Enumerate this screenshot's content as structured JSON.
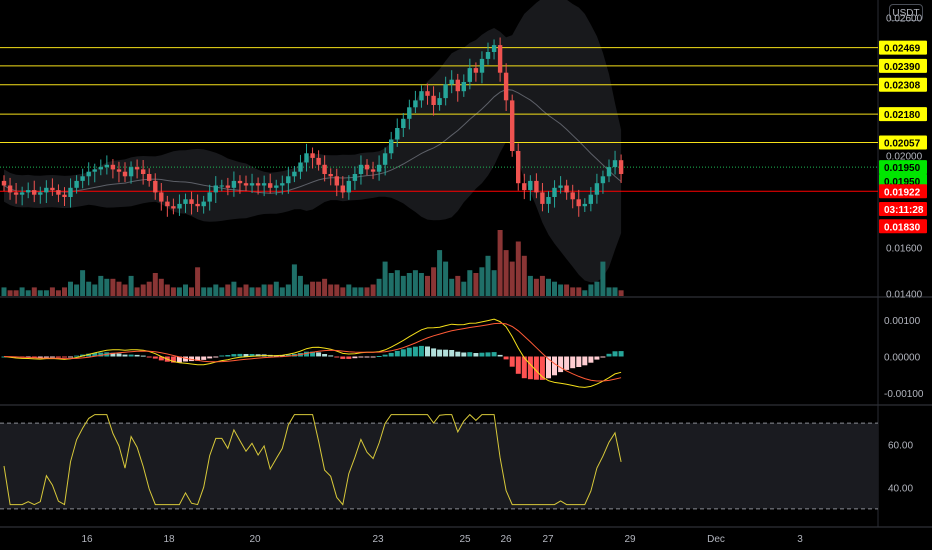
{
  "currency": "USDT",
  "colors": {
    "bg": "#000000",
    "up": "#26a69a",
    "down": "#ef5350",
    "vol_up": "#1f6f68",
    "vol_down": "#8a3535",
    "level_line": "#f5e01a",
    "badge_yellow": "#ffff00",
    "badge_green": "#00e600",
    "badge_red": "#ff0000",
    "hist_up_strong": "#26a69a",
    "hist_up_weak": "#b2dfdb",
    "hist_down_strong": "#ff5252",
    "hist_down_weak": "#ffcdd2",
    "macd_line": "#f5e01a",
    "signal_line": "#ff5a36",
    "rsi_line": "#d8c93a",
    "axis_text": "#b2b5be"
  },
  "chart_data": [
    {
      "type": "candlestick",
      "name": "price",
      "x_tick_labels": [
        "16",
        "18",
        "20",
        "23",
        "25",
        "26",
        "27",
        "29",
        "Dec",
        "3"
      ],
      "y_ticks": [
        "0.02600",
        "0.02000",
        "0.01600",
        "0.01400"
      ],
      "ylim": [
        0.0139,
        0.0265
      ],
      "price_levels": [
        {
          "label": "0.02469",
          "value": 0.02469,
          "style": "yellow"
        },
        {
          "label": "0.02390",
          "value": 0.0239,
          "style": "yellow"
        },
        {
          "label": "0.02308",
          "value": 0.02308,
          "style": "yellow"
        },
        {
          "label": "0.02180",
          "value": 0.0218,
          "style": "yellow"
        },
        {
          "label": "0.02057",
          "value": 0.02057,
          "style": "yellow"
        }
      ],
      "badges": [
        {
          "label": "0.01950",
          "value": 0.0195,
          "style": "green",
          "line": true
        },
        {
          "label": "0.01950",
          "value": 0.0189,
          "style": "green",
          "line": false
        },
        {
          "label": "0.01922",
          "value": 0.01845,
          "style": "red",
          "line": true
        },
        {
          "label": "03:11:28",
          "value": 0.01768,
          "style": "red",
          "line": false
        },
        {
          "label": "0.01830",
          "value": 0.01693,
          "style": "red",
          "line": false
        }
      ],
      "closes": [
        0.0187,
        0.0184,
        0.0183,
        0.0184,
        0.0185,
        0.0183,
        0.0184,
        0.0186,
        0.0185,
        0.0183,
        0.0182,
        0.0186,
        0.0189,
        0.0191,
        0.0193,
        0.0194,
        0.0195,
        0.0196,
        0.0194,
        0.0193,
        0.0191,
        0.0195,
        0.0194,
        0.0192,
        0.0189,
        0.0184,
        0.018,
        0.0178,
        0.0177,
        0.0179,
        0.0181,
        0.0179,
        0.0178,
        0.018,
        0.0184,
        0.0187,
        0.0187,
        0.0186,
        0.0189,
        0.0188,
        0.0187,
        0.0188,
        0.0187,
        0.0188,
        0.0186,
        0.0187,
        0.0188,
        0.0191,
        0.0193,
        0.0197,
        0.0201,
        0.0199,
        0.0196,
        0.0192,
        0.0191,
        0.0187,
        0.0184,
        0.0189,
        0.0192,
        0.0196,
        0.0194,
        0.0193,
        0.0196,
        0.0201,
        0.0207,
        0.0212,
        0.0216,
        0.0221,
        0.0224,
        0.0228,
        0.0226,
        0.0222,
        0.0225,
        0.0231,
        0.0233,
        0.0228,
        0.0232,
        0.0238,
        0.0236,
        0.0242,
        0.0245,
        0.0248,
        0.0236,
        0.0224,
        0.0202,
        0.0188,
        0.0185,
        0.0189,
        0.0184,
        0.0179,
        0.0182,
        0.0186,
        0.0187,
        0.0184,
        0.0181,
        0.0178,
        0.0179,
        0.0183,
        0.0188,
        0.0191,
        0.0195,
        0.0198,
        0.0192
      ],
      "volumes": [
        3,
        2,
        2,
        3,
        2,
        3,
        2,
        2,
        3,
        2,
        3,
        5,
        4,
        9,
        5,
        4,
        7,
        6,
        6,
        5,
        4,
        7,
        3,
        4,
        5,
        8,
        6,
        4,
        3,
        3,
        4,
        3,
        10,
        3,
        3,
        4,
        3,
        4,
        5,
        3,
        4,
        3,
        3,
        4,
        4,
        5,
        3,
        4,
        11,
        7,
        4,
        5,
        5,
        6,
        4,
        4,
        3,
        4,
        3,
        3,
        3,
        4,
        6,
        12,
        8,
        9,
        7,
        8,
        9,
        8,
        7,
        10,
        16,
        12,
        6,
        7,
        5,
        9,
        8,
        10,
        14,
        9,
        23,
        16,
        12,
        19,
        14,
        7,
        6,
        7,
        6,
        5,
        4,
        4,
        3,
        3,
        2,
        4,
        5,
        12,
        3,
        3,
        2
      ]
    },
    {
      "type": "macd",
      "name": "MACD",
      "y_ticks": [
        "0.00100",
        "0.00000",
        "-0.00100"
      ],
      "ylim": [
        -0.0013,
        0.0016
      ]
    },
    {
      "type": "line",
      "name": "RSI",
      "y_ticks": [
        "60.00",
        "40.00"
      ],
      "ylim": [
        22,
        78
      ],
      "bands": [
        70,
        30
      ]
    }
  ]
}
